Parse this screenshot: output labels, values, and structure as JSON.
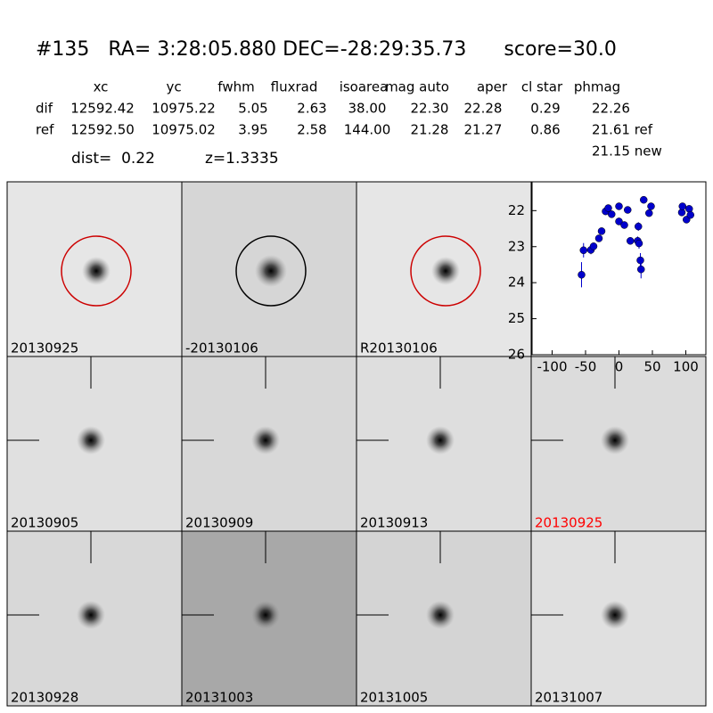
{
  "header": {
    "title": "#135   RA= 3:28:05.880 DEC=-28:29:35.73      score=30.0"
  },
  "table": {
    "columns": [
      "xc",
      "yc",
      "fwhm",
      "fluxrad",
      "isoarea",
      "mag auto",
      "aper",
      "cl star",
      "phmag"
    ],
    "rows": [
      [
        "dif",
        "12592.42",
        "10975.22",
        "5.05",
        "2.63",
        "38.00",
        "22.30",
        "22.28",
        "0.29",
        "22.26"
      ],
      [
        "ref",
        "12592.50",
        "10975.02",
        "3.95",
        "2.58",
        "144.00",
        "21.28",
        "21.27",
        "0.86",
        "21.61 ref"
      ]
    ],
    "note": "21.15 new"
  },
  "dist": "dist=  0.22",
  "z": "z=1.3335",
  "panels": [
    {
      "label": "20130925",
      "label_color": "#000000"
    },
    {
      "label": "-20130106",
      "label_color": "#000000"
    },
    {
      "label": "R20130106",
      "label_color": "#000000"
    },
    {
      "label": "20130905",
      "label_color": "#000000"
    },
    {
      "label": "20130909",
      "label_color": "#000000"
    },
    {
      "label": "20130913",
      "label_color": "#000000"
    },
    {
      "label": "20130925",
      "label_color": "#ff0000"
    },
    {
      "label": "20130928",
      "label_color": "#000000"
    },
    {
      "label": "20131003",
      "label_color": "#000000"
    },
    {
      "label": "20131005",
      "label_color": "#000000"
    },
    {
      "label": "20131007",
      "label_color": "#000000"
    }
  ],
  "chart_data": {
    "type": "scatter",
    "color": "#0000cc",
    "x": [
      -56,
      -53,
      -42,
      -38,
      -30,
      -26,
      -20,
      -16,
      -11,
      0,
      0,
      8,
      13,
      17,
      28,
      29,
      30,
      32,
      33,
      37,
      45,
      48,
      94,
      95,
      101,
      105,
      107
    ],
    "y": [
      23.78,
      23.1,
      23.09,
      22.99,
      22.77,
      22.57,
      22.02,
      21.93,
      22.1,
      21.88,
      22.3,
      22.4,
      21.98,
      22.84,
      22.84,
      22.44,
      22.91,
      23.38,
      23.63,
      21.7,
      22.07,
      21.88,
      22.05,
      21.88,
      22.25,
      21.95,
      22.12
    ],
    "err": [
      0.35,
      0.2,
      0.12,
      0.1,
      0.1,
      0.1,
      0.08,
      0.08,
      0.08,
      0.06,
      0.1,
      0.1,
      0.08,
      0.1,
      0.12,
      0.12,
      0.15,
      0.2,
      0.25,
      0.06,
      0.08,
      0.08,
      0.1,
      0.08,
      0.1,
      0.08,
      0.1
    ],
    "xlim": [
      -130,
      130
    ],
    "ylim": [
      26,
      21.2
    ],
    "xticks": [
      -100,
      -50,
      0,
      50,
      100
    ],
    "yticks": [
      22,
      23,
      24,
      25,
      26
    ]
  }
}
